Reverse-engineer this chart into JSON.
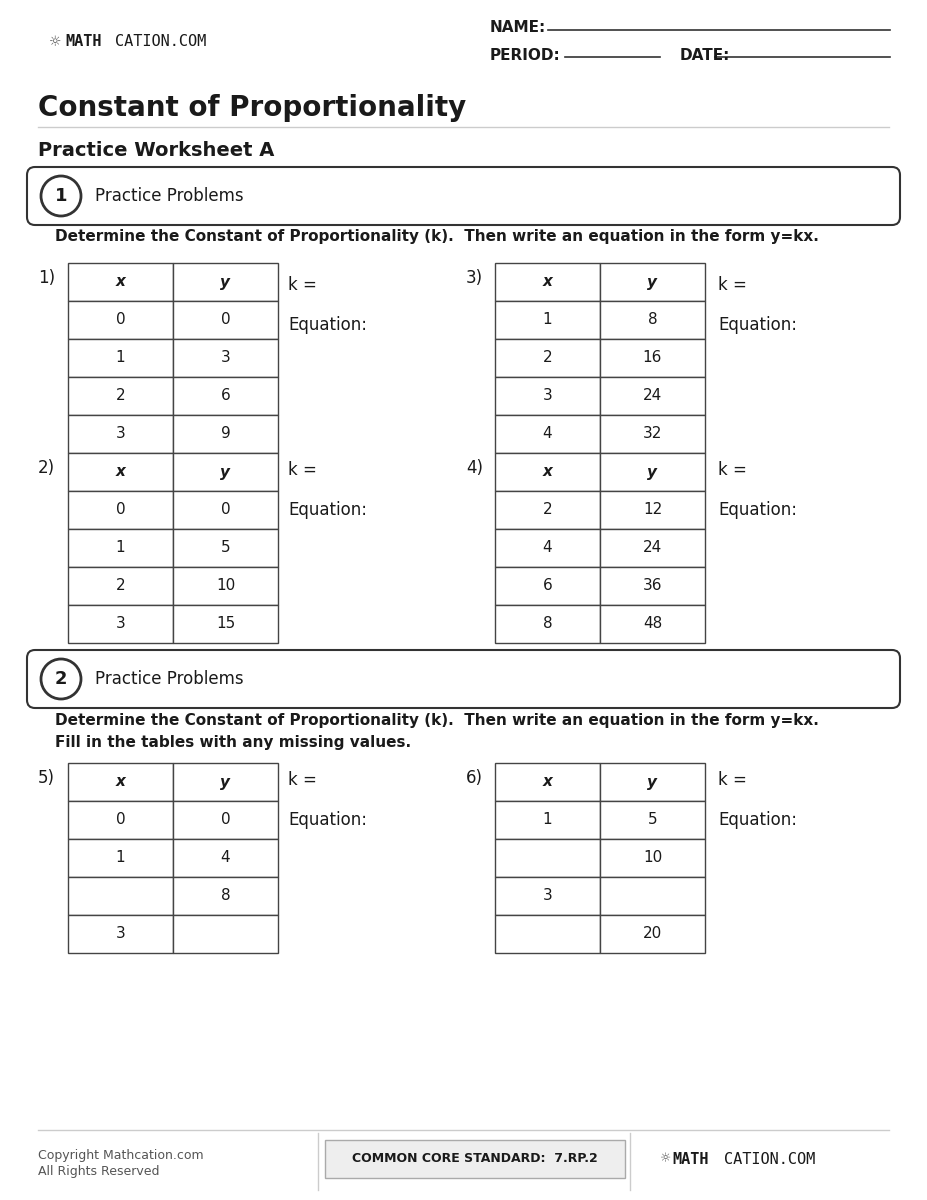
{
  "title": "Constant of Proportionality",
  "subtitle": "Practice Worksheet A",
  "section1_label": "1",
  "section1_title": "Practice Problems",
  "section1_instruction": "Determine the Constant of Proportionality (k).  Then write an equation in the form y=kx.",
  "section2_label": "2",
  "section2_title": "Practice Problems",
  "section2_instr1": "Determine the Constant of Proportionality (k).  Then write an equation in the form y=kx.",
  "section2_instr2": "Fill in the tables with any missing values.",
  "name_label": "NAME:",
  "period_label": "PERIOD:",
  "date_label": "DATE:",
  "footer_copyright": "Copyright Mathcation.com\nAll Rights Reserved",
  "footer_standard": "COMMON CORE STANDARD:  7.RP.2",
  "tables": [
    {
      "number": "1)",
      "x_vals": [
        "x",
        "0",
        "1",
        "2",
        "3"
      ],
      "y_vals": [
        "y",
        "0",
        "3",
        "6",
        "9"
      ],
      "k_label": "k =",
      "eq_label": "Equation:"
    },
    {
      "number": "2)",
      "x_vals": [
        "x",
        "0",
        "1",
        "2",
        "3"
      ],
      "y_vals": [
        "y",
        "0",
        "5",
        "10",
        "15"
      ],
      "k_label": "k =",
      "eq_label": "Equation:"
    },
    {
      "number": "3)",
      "x_vals": [
        "x",
        "1",
        "2",
        "3",
        "4"
      ],
      "y_vals": [
        "y",
        "8",
        "16",
        "24",
        "32"
      ],
      "k_label": "k =",
      "eq_label": "Equation:"
    },
    {
      "number": "4)",
      "x_vals": [
        "x",
        "2",
        "4",
        "6",
        "8"
      ],
      "y_vals": [
        "y",
        "12",
        "24",
        "36",
        "48"
      ],
      "k_label": "k =",
      "eq_label": "Equation:"
    },
    {
      "number": "5)",
      "x_vals": [
        "x",
        "0",
        "1",
        "",
        "3"
      ],
      "y_vals": [
        "y",
        "0",
        "4",
        "8",
        ""
      ],
      "k_label": "k =",
      "eq_label": "Equation:"
    },
    {
      "number": "6)",
      "x_vals": [
        "x",
        "1",
        "",
        "3",
        ""
      ],
      "y_vals": [
        "y",
        "5",
        "10",
        "",
        "20"
      ],
      "k_label": "k =",
      "eq_label": "Equation:"
    }
  ],
  "bg_color": "#ffffff",
  "text_color": "#1a1a1a",
  "table_border_color": "#444444",
  "gray_line": "#cccccc",
  "footer_box_bg": "#eeeeee",
  "footer_box_edge": "#aaaaaa"
}
